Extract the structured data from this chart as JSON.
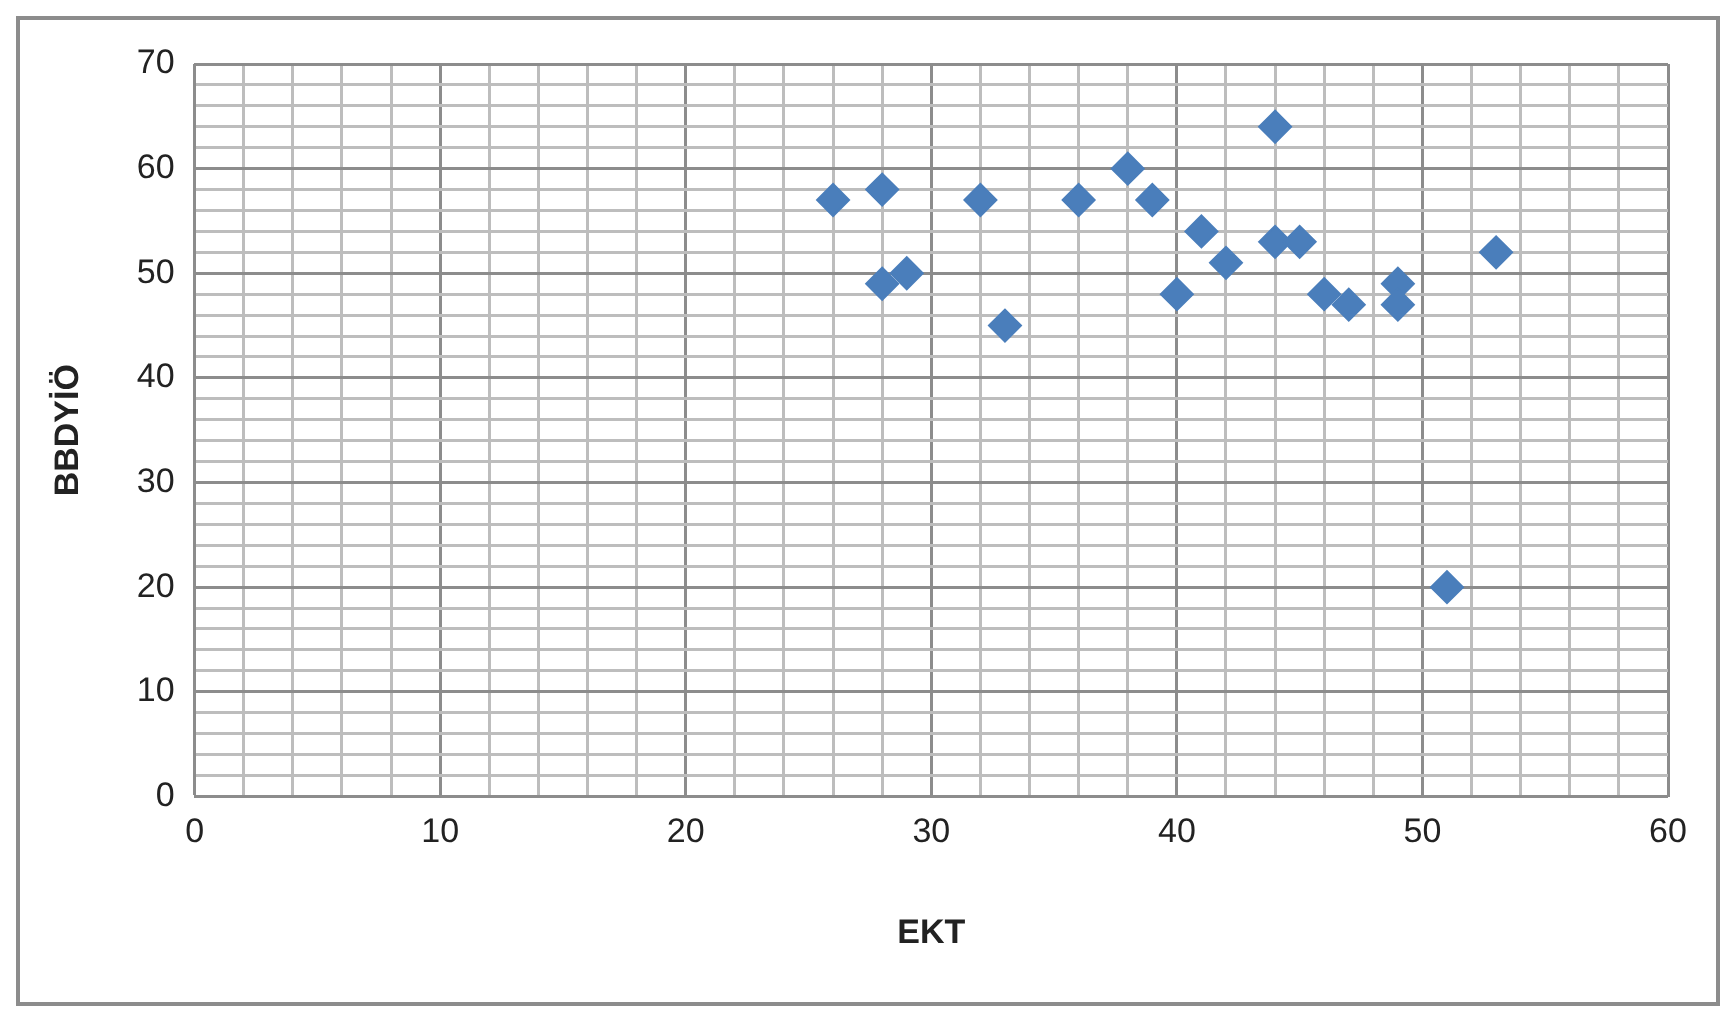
{
  "chart_data": {
    "type": "scatter",
    "xlabel": "EKT",
    "ylabel": "BBDYİÖ",
    "x": [
      26,
      28,
      28,
      29,
      32,
      33,
      36,
      38,
      39,
      40,
      41,
      42,
      44,
      44,
      45,
      46,
      47,
      49,
      49,
      51,
      53
    ],
    "values": [
      57,
      58,
      49,
      50,
      57,
      45,
      57,
      60,
      57,
      48,
      54,
      51,
      64,
      53,
      53,
      48,
      47,
      49,
      47,
      20,
      52
    ],
    "color": "#4a7ebb",
    "marker": "diamond",
    "grid": true,
    "legend": false,
    "xlim": [
      0,
      60
    ],
    "ylim": [
      0,
      70
    ],
    "xticks": [
      0,
      {
        "value": 2,
        "label": null
      },
      {
        "value": 4,
        "label": null
      },
      {
        "value": 6,
        "label": null
      },
      {
        "value": 8,
        "label": null
      },
      10,
      {
        "value": 12,
        "label": null
      },
      {
        "value": 14,
        "label": null
      },
      {
        "value": 16,
        "label": null
      },
      {
        "value": 18,
        "label": null
      },
      20,
      {
        "value": 22,
        "label": null
      },
      {
        "value": 24,
        "label": null
      },
      {
        "value": 26,
        "label": null
      },
      {
        "value": 28,
        "label": null
      },
      30,
      {
        "value": 32,
        "label": null
      },
      {
        "value": 34,
        "label": null
      },
      {
        "value": 36,
        "label": null
      },
      {
        "value": 38,
        "label": null
      },
      40,
      {
        "value": 42,
        "label": null
      },
      {
        "value": 44,
        "label": null
      },
      {
        "value": 46,
        "label": null
      },
      {
        "value": 48,
        "label": null
      },
      50,
      {
        "value": 52,
        "label": null
      },
      {
        "value": 54,
        "label": null
      },
      {
        "value": 56,
        "label": null
      },
      {
        "value": 58,
        "label": null
      },
      60
    ],
    "yticks": [
      0,
      {
        "value": 2,
        "label": null
      },
      {
        "value": 4,
        "label": null
      },
      {
        "value": 6,
        "label": null
      },
      {
        "value": 8,
        "label": null
      },
      10,
      {
        "value": 12,
        "label": null
      },
      {
        "value": 14,
        "label": null
      },
      {
        "value": 16,
        "label": null
      },
      {
        "value": 18,
        "label": null
      },
      20,
      {
        "value": 22,
        "label": null
      },
      {
        "value": 24,
        "label": null
      },
      {
        "value": 26,
        "label": null
      },
      {
        "value": 28,
        "label": null
      },
      30,
      {
        "value": 32,
        "label": null
      },
      {
        "value": 34,
        "label": null
      },
      {
        "value": 36,
        "label": null
      },
      {
        "value": 38,
        "label": null
      },
      40,
      {
        "value": 42,
        "label": null
      },
      {
        "value": 44,
        "label": null
      },
      {
        "value": 46,
        "label": null
      },
      {
        "value": 48,
        "label": null
      },
      50,
      {
        "value": 52,
        "label": null
      },
      {
        "value": 54,
        "label": null
      },
      {
        "value": 56,
        "label": null
      },
      {
        "value": 58,
        "label": null
      },
      60,
      {
        "value": 62,
        "label": null
      },
      {
        "value": 64,
        "label": null
      },
      {
        "value": 66,
        "label": null
      },
      {
        "value": 68,
        "label": null
      },
      70
    ]
  }
}
